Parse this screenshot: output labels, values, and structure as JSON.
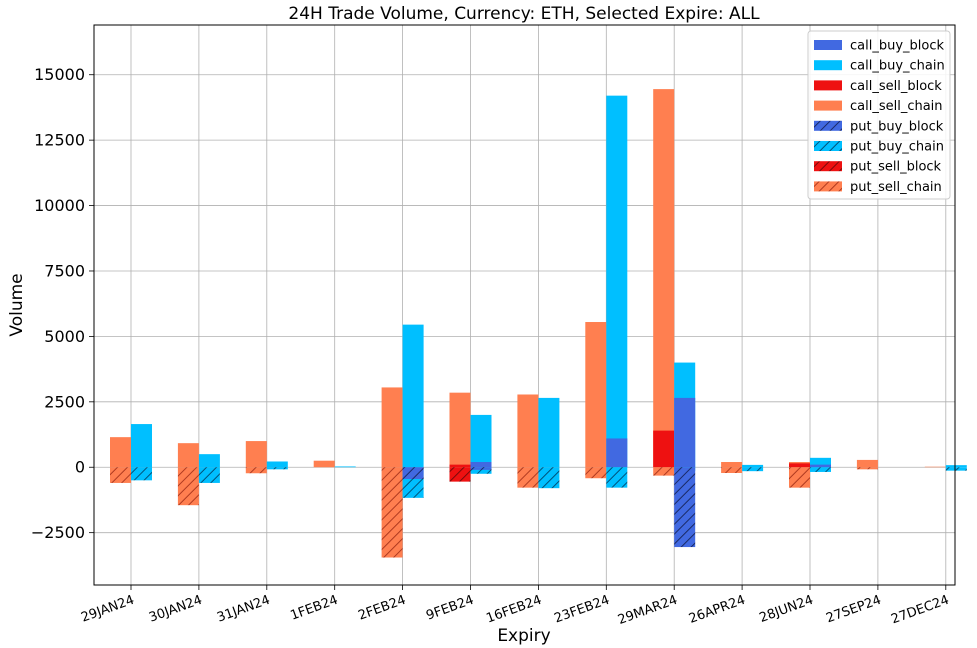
{
  "chart_data": {
    "type": "bar",
    "title": "24H Trade Volume, Currency: ETH, Selected Expire: ALL",
    "xlabel": "Expiry",
    "ylabel": "Volume",
    "ylim": [
      -4500,
      16900
    ],
    "yticks": [
      -2500,
      0,
      2500,
      5000,
      7500,
      10000,
      12500,
      15000
    ],
    "ytick_labels": [
      "−2500",
      "0",
      "2500",
      "5000",
      "7500",
      "10000",
      "12500",
      "15000"
    ],
    "grid": true,
    "legend_position": "top-right",
    "categories": [
      "29JAN24",
      "30JAN24",
      "31JAN24",
      "1FEB24",
      "2FEB24",
      "9FEB24",
      "16FEB24",
      "23FEB24",
      "29MAR24",
      "26APR24",
      "28JUN24",
      "27SEP24",
      "27DEC24"
    ],
    "series": [
      {
        "name": "call_buy_block",
        "color": "#4169E1",
        "hatch": false,
        "group": "call_buy",
        "values": [
          0,
          0,
          0,
          0,
          0,
          200,
          0,
          1100,
          2650,
          0,
          100,
          0,
          0
        ]
      },
      {
        "name": "call_buy_chain",
        "color": "#00BFFF",
        "hatch": false,
        "group": "call_buy",
        "values": [
          1650,
          500,
          220,
          30,
          5450,
          2000,
          2650,
          14200,
          4000,
          90,
          360,
          0,
          80
        ]
      },
      {
        "name": "call_sell_block",
        "color": "#EE1111",
        "hatch": false,
        "group": "call_sell",
        "values": [
          0,
          0,
          0,
          0,
          0,
          100,
          0,
          0,
          1400,
          0,
          150,
          0,
          0
        ]
      },
      {
        "name": "call_sell_chain",
        "color": "#FF7F50",
        "hatch": false,
        "group": "call_sell",
        "values": [
          1150,
          920,
          1000,
          250,
          3050,
          2850,
          2780,
          5550,
          14450,
          200,
          200,
          280,
          20
        ]
      },
      {
        "name": "put_buy_block",
        "color": "#4169E1",
        "hatch": true,
        "group": "put_buy",
        "values": [
          0,
          0,
          0,
          0,
          -450,
          -100,
          0,
          0,
          -3050,
          0,
          0,
          0,
          0
        ]
      },
      {
        "name": "put_buy_chain",
        "color": "#00BFFF",
        "hatch": true,
        "group": "put_buy",
        "values": [
          -500,
          -600,
          -80,
          0,
          -1170,
          -250,
          -800,
          -780,
          -150,
          -150,
          -180,
          0,
          -130
        ]
      },
      {
        "name": "put_sell_block",
        "color": "#EE1111",
        "hatch": true,
        "group": "put_sell",
        "values": [
          0,
          0,
          0,
          0,
          0,
          -550,
          0,
          0,
          0,
          0,
          0,
          0,
          0
        ]
      },
      {
        "name": "put_sell_chain",
        "color": "#FF7F50",
        "hatch": true,
        "group": "put_sell",
        "values": [
          -600,
          -1450,
          -230,
          0,
          -3450,
          -450,
          -780,
          -420,
          -320,
          -220,
          -780,
          -80,
          0
        ]
      }
    ]
  }
}
